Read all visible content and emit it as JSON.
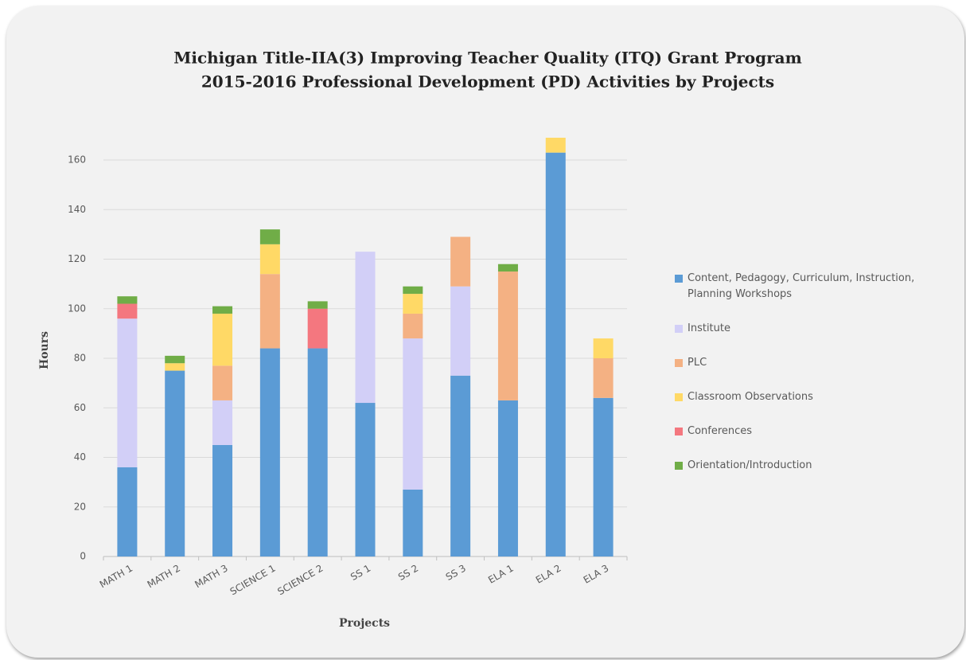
{
  "chart_data": {
    "type": "stacked_bar",
    "title": [
      "Michigan Title-IIA(3) Improving Teacher Quality (ITQ) Grant Program",
      "2015-2016 Professional Development (PD) Activities by Projects"
    ],
    "x_label": "Projects",
    "y_label": "Hours",
    "categories": [
      "MATH 1",
      "MATH 2",
      "MATH 3",
      "SCIENCE 1",
      "SCIENCE 2",
      "SS 1",
      "SS 2",
      "SS 3",
      "ELA 1",
      "ELA 2",
      "ELA 3"
    ],
    "series": [
      {
        "name": "Content, Pedagogy, Curriculum, Instruction, Planning Workshops",
        "color": "#5b9bd5",
        "values": [
          36,
          75,
          45,
          84,
          84,
          62,
          27,
          73,
          63,
          163,
          64
        ]
      },
      {
        "name": "Institute",
        "color": "#d2cff7",
        "values": [
          60,
          0,
          18,
          0,
          0,
          61,
          61,
          36,
          0,
          0,
          0
        ]
      },
      {
        "name": "PLC",
        "color": "#f4b183",
        "values": [
          0,
          0,
          14,
          30,
          0,
          0,
          10,
          20,
          52,
          0,
          16
        ]
      },
      {
        "name": "Classroom Observations",
        "color": "#ffd966",
        "values": [
          0,
          3,
          21,
          12,
          0,
          0,
          8,
          0,
          0,
          6,
          8
        ]
      },
      {
        "name": "Conferences",
        "color": "#f4777f",
        "values": [
          6,
          0,
          0,
          0,
          16,
          0,
          0,
          0,
          0,
          0,
          0
        ]
      },
      {
        "name": "Orientation/Introduction",
        "color": "#70ad47",
        "values": [
          3,
          3,
          3,
          6,
          3,
          0,
          3,
          0,
          3,
          0,
          0
        ]
      }
    ],
    "ylim": [
      0,
      160
    ],
    "yticks": [
      0,
      20,
      40,
      60,
      80,
      100,
      120,
      140,
      160
    ],
    "grid": true,
    "legend": "right"
  }
}
